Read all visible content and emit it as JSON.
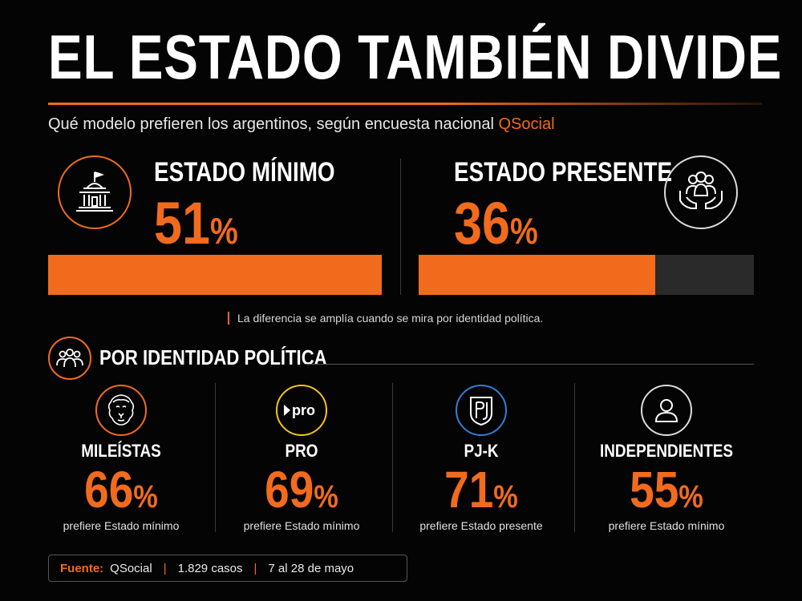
{
  "header": {
    "title": "EL ESTADO TAMBIÉN DIVIDE",
    "subtitle": "Qué modelo prefieren los argentinos, según encuesta nacional",
    "brand": "QSocial"
  },
  "colors": {
    "accent": "#f26b1d",
    "track": "#2a2a2a",
    "background": "#040404"
  },
  "chart_data": [
    {
      "type": "bar",
      "categories": [
        "ESTADO MÍNIMO",
        "ESTADO PRESENTE"
      ],
      "values": [
        51,
        36
      ],
      "unit": "%",
      "ylim": [
        0,
        51
      ],
      "icons": [
        "government-building-icon",
        "people-in-hands-icon"
      ]
    },
    {
      "type": "table",
      "title": "POR IDENTIDAD POLÍTICA",
      "categories": [
        "MILEÍSTAS",
        "PRO",
        "PJ-K",
        "INDEPENDIENTES"
      ],
      "values": [
        66,
        69,
        71,
        55
      ],
      "unit": "%",
      "captions": [
        "prefiere Estado mínimo",
        "prefiere Estado mínimo",
        "prefiere Estado presente",
        "prefiere Estado mínimo"
      ],
      "icons": [
        "lion-icon",
        "pro-logo-icon",
        "pj-shield-icon",
        "person-icon"
      ]
    }
  ],
  "note": "La diferencia se amplía cuando se mira por identidad política.",
  "footer": {
    "source_label": "Fuente:",
    "source": "QSocial",
    "cases": "1.829 casos",
    "dates": "7 al 28 de mayo"
  },
  "pro_logo_text": "pro",
  "percent_symbol": "%"
}
